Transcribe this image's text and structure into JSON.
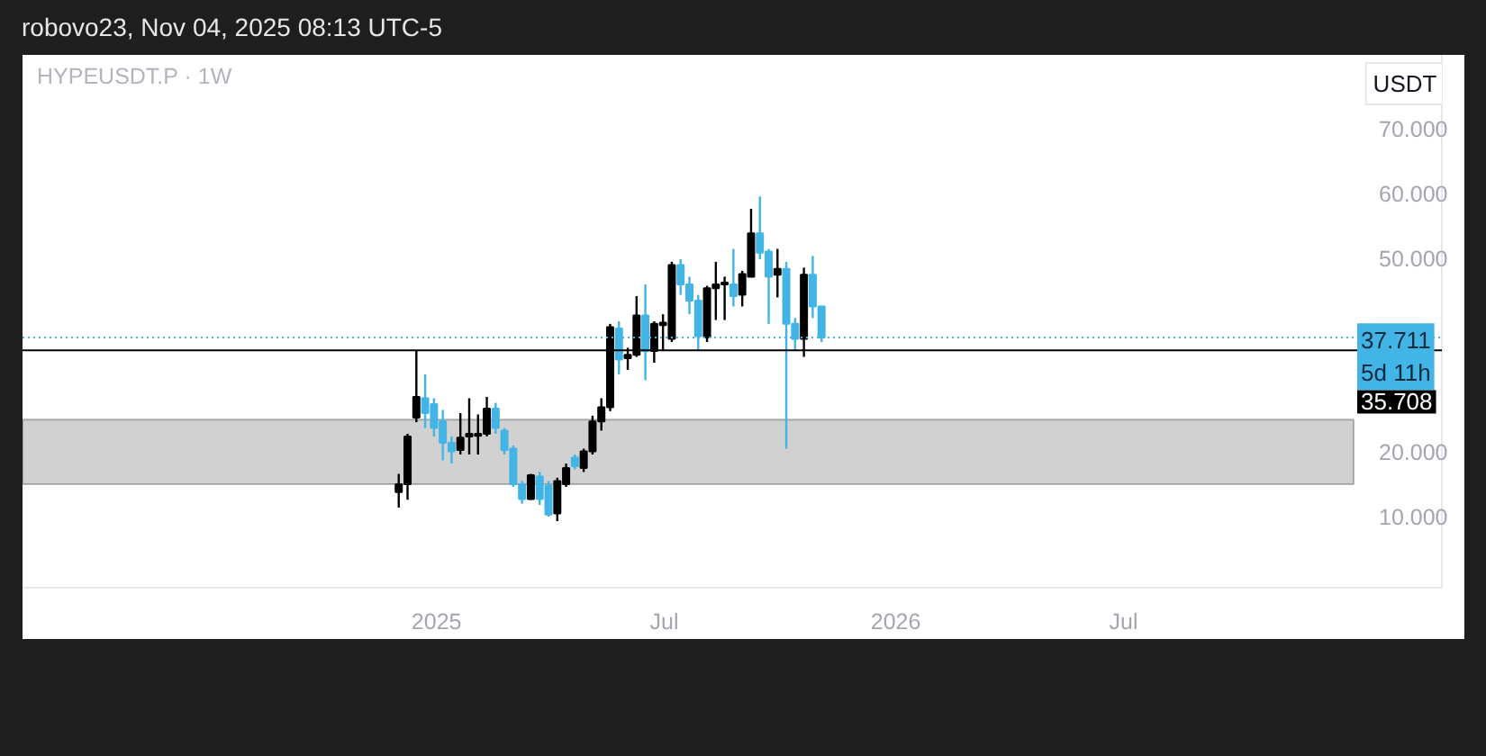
{
  "chart_data": {
    "type": "candlestick",
    "title": "HYPEUSDT.P · 1W",
    "ylabel": "USDT",
    "annotations": [
      "robovo23, Nov 04, 2025 08:13 UTC-5"
    ],
    "x": [
      "2024-12-02",
      "2024-12-09",
      "2024-12-16",
      "2024-12-23",
      "2024-12-30",
      "2025-01-06",
      "2025-01-13",
      "2025-01-20",
      "2025-01-27",
      "2025-02-03",
      "2025-02-10",
      "2025-02-17",
      "2025-02-24",
      "2025-03-03",
      "2025-03-10",
      "2025-03-17",
      "2025-03-24",
      "2025-03-31",
      "2025-04-07",
      "2025-04-14",
      "2025-04-21",
      "2025-04-28",
      "2025-05-05",
      "2025-05-12",
      "2025-05-19",
      "2025-05-26",
      "2025-06-02",
      "2025-06-09",
      "2025-06-16",
      "2025-06-23",
      "2025-06-30",
      "2025-07-07",
      "2025-07-14",
      "2025-07-21",
      "2025-07-28",
      "2025-08-04",
      "2025-08-11",
      "2025-08-18",
      "2025-08-25",
      "2025-09-01",
      "2025-09-08",
      "2025-09-15",
      "2025-09-22",
      "2025-09-29",
      "2025-10-06",
      "2025-10-13",
      "2025-10-20",
      "2025-10-27",
      "2025-11-03"
    ],
    "ohlc": [
      [
        13.8,
        16.6,
        11.4,
        15.0
      ],
      [
        15.0,
        22.8,
        12.6,
        22.4
      ],
      [
        25.3,
        35.7,
        24.6,
        28.5
      ],
      [
        28.3,
        32.0,
        23.7,
        26.0
      ],
      [
        27.4,
        28.3,
        22.4,
        23.7
      ],
      [
        24.7,
        26.5,
        18.7,
        21.4
      ],
      [
        21.4,
        22.4,
        18.2,
        20.1
      ],
      [
        20.3,
        26.0,
        19.6,
        22.2
      ],
      [
        22.4,
        28.3,
        19.6,
        22.8
      ],
      [
        22.5,
        25.8,
        19.6,
        22.8
      ],
      [
        22.8,
        28.5,
        22.4,
        26.7
      ],
      [
        26.7,
        27.6,
        22.8,
        23.7
      ],
      [
        23.3,
        23.7,
        19.6,
        20.3
      ],
      [
        20.5,
        21.0,
        14.6,
        15.0
      ],
      [
        15.0,
        15.5,
        12.0,
        12.7
      ],
      [
        12.7,
        16.6,
        12.6,
        16.4
      ],
      [
        16.2,
        16.9,
        11.8,
        12.7
      ],
      [
        14.8,
        15.5,
        10.0,
        10.3
      ],
      [
        10.5,
        16.0,
        9.3,
        15.5
      ],
      [
        15.0,
        18.2,
        14.6,
        17.5
      ],
      [
        19.1,
        19.6,
        17.3,
        17.8
      ],
      [
        17.5,
        20.5,
        16.9,
        20.1
      ],
      [
        20.1,
        25.6,
        19.6,
        24.7
      ],
      [
        24.7,
        28.3,
        23.3,
        26.9
      ],
      [
        26.9,
        39.8,
        26.3,
        39.3
      ],
      [
        39.1,
        40.2,
        32.0,
        34.3
      ],
      [
        34.5,
        36.1,
        32.7,
        35.0
      ],
      [
        35.0,
        44.1,
        34.7,
        41.1
      ],
      [
        41.1,
        45.9,
        31.1,
        35.6
      ],
      [
        35.6,
        40.2,
        33.8,
        39.8
      ],
      [
        39.6,
        41.3,
        35.6,
        40.0
      ],
      [
        37.5,
        49.4,
        37.0,
        48.9
      ],
      [
        48.9,
        49.8,
        44.3,
        45.9
      ],
      [
        45.9,
        47.1,
        41.3,
        43.4
      ],
      [
        43.4,
        44.3,
        35.6,
        37.9
      ],
      [
        37.7,
        45.7,
        37.0,
        45.3
      ],
      [
        45.3,
        49.4,
        40.4,
        45.9
      ],
      [
        45.9,
        47.1,
        40.4,
        46.2
      ],
      [
        45.9,
        51.4,
        42.5,
        44.1
      ],
      [
        44.3,
        48.0,
        42.5,
        47.5
      ],
      [
        47.1,
        57.6,
        47.1,
        53.8
      ],
      [
        53.8,
        59.5,
        49.8,
        50.8
      ],
      [
        51.0,
        51.4,
        39.8,
        47.1
      ],
      [
        47.4,
        51.4,
        43.9,
        48.3
      ],
      [
        48.3,
        49.4,
        20.5,
        39.8
      ],
      [
        39.8,
        40.7,
        35.6,
        37.5
      ],
      [
        37.5,
        48.5,
        34.7,
        47.4
      ],
      [
        47.4,
        50.3,
        40.7,
        42.5
      ],
      [
        42.5,
        42.5,
        37.0,
        37.711
      ]
    ],
    "colors": [
      "#000000",
      "#000000",
      "#000000",
      "#42b4e6",
      "#42b4e6",
      "#42b4e6",
      "#42b4e6",
      "#000000",
      "#000000",
      "#000000",
      "#000000",
      "#42b4e6",
      "#42b4e6",
      "#42b4e6",
      "#42b4e6",
      "#000000",
      "#42b4e6",
      "#42b4e6",
      "#000000",
      "#000000",
      "#42b4e6",
      "#000000",
      "#000000",
      "#000000",
      "#000000",
      "#42b4e6",
      "#000000",
      "#000000",
      "#42b4e6",
      "#000000",
      "#000000",
      "#000000",
      "#42b4e6",
      "#42b4e6",
      "#42b4e6",
      "#000000",
      "#000000",
      "#000000",
      "#42b4e6",
      "#000000",
      "#000000",
      "#42b4e6",
      "#42b4e6",
      "#000000",
      "#42b4e6",
      "#42b4e6",
      "#000000",
      "#42b4e6",
      "#42b4e6"
    ],
    "xlim": [
      "2024-02-07",
      "2027-03-11"
    ],
    "xticks": [
      {
        "value": "2025-01-01",
        "label": "2025"
      },
      {
        "value": "2025-07-01",
        "label": "Jul"
      },
      {
        "value": "2026-01-01",
        "label": "2026"
      },
      {
        "value": "2026-07-01",
        "label": "Jul"
      }
    ],
    "ylim": [
      -1,
      81.4
    ],
    "yticks": [
      {
        "value": 10,
        "label": "10.000"
      },
      {
        "value": 20,
        "label": "20.000"
      },
      {
        "value": 50,
        "label": "50.000"
      },
      {
        "value": 60,
        "label": "60.000"
      },
      {
        "value": 70,
        "label": "70.000"
      }
    ],
    "ref_lines": [
      {
        "axis": "y",
        "value": 37.711,
        "label": "37.711\n5d 11h",
        "color": "#42b4e6",
        "line_style": "dotted"
      },
      {
        "axis": "y",
        "value": 35.708,
        "label": "35.708",
        "color": "#000000",
        "line_style": "solid"
      }
    ],
    "bands": [
      {
        "axis": "y",
        "from": 15,
        "to": 25,
        "color": "#d1d1d1"
      }
    ]
  }
}
